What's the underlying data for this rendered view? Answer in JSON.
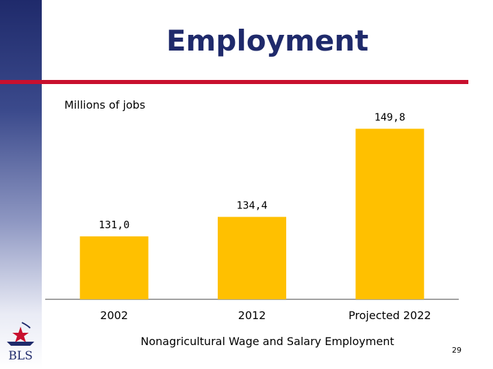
{
  "slide": {
    "title": "Employment",
    "page_number": "29",
    "logo_text": "BLS"
  },
  "colors": {
    "bar": "#FFC000",
    "title": "#1f2a6b",
    "rule": "#c8102e"
  },
  "chart_data": {
    "type": "bar",
    "title": "",
    "ylabel": "Millions of jobs",
    "xlabel": "Nonagricultural Wage and Salary Employment",
    "categories": [
      "2002",
      "2012",
      "Projected 2022"
    ],
    "values": [
      131.0,
      134.4,
      149.8
    ],
    "value_labels": [
      "131,0",
      "134,4",
      "149,8"
    ],
    "ylim": [
      120,
      152
    ],
    "grid": false,
    "legend": "none"
  }
}
